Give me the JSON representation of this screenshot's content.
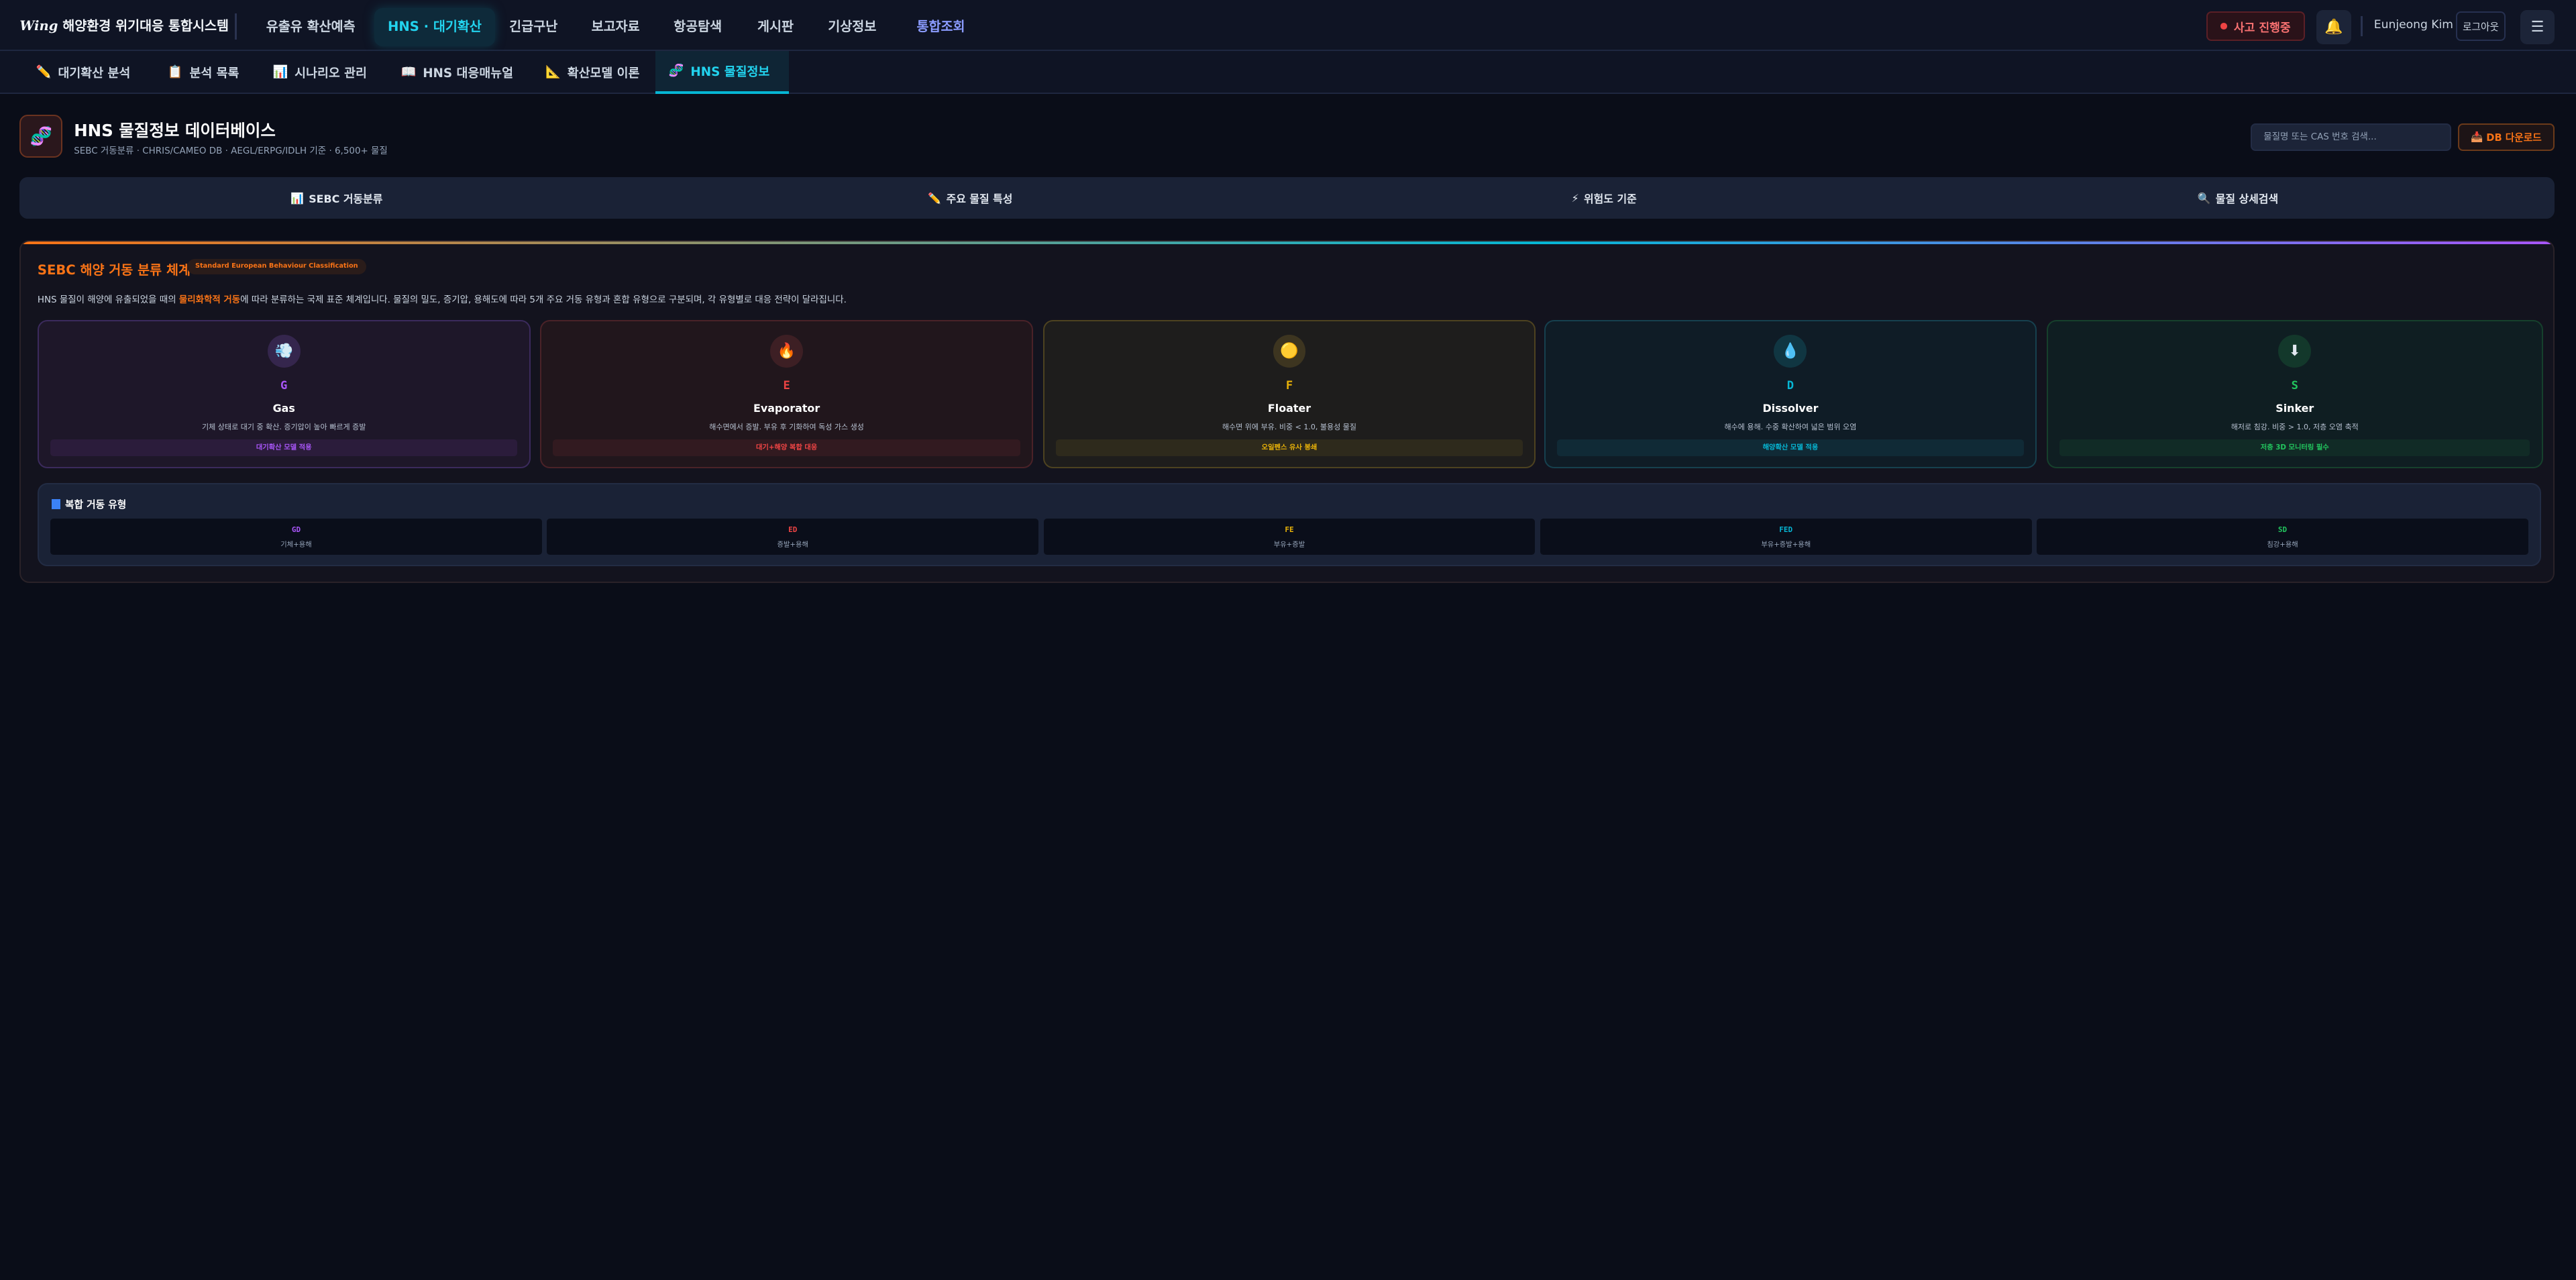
{
  "app": {
    "logo": "Wing",
    "title": "해양환경 위기대응 통합시스템"
  },
  "nav": [
    {
      "label": "유출유 확산예측",
      "active": false
    },
    {
      "label": "HNS · 대기확산",
      "active": true
    },
    {
      "label": "긴급구난",
      "active": false
    },
    {
      "label": "보고자료",
      "active": false
    },
    {
      "label": "항공탐색",
      "active": false
    },
    {
      "label": "게시판",
      "active": false
    },
    {
      "label": "기상정보",
      "active": false
    },
    {
      "label": "통합조회",
      "active": false
    }
  ],
  "topright": {
    "incident": "사고 진행중",
    "user": "Eunjeong Kim",
    "logout": "로그아웃",
    "bell_icon": "bell-icon",
    "menu_icon": "hamburger-icon"
  },
  "subnav": [
    {
      "icon": "✏️",
      "label": "대기확산 분석"
    },
    {
      "icon": "📋",
      "label": "분석 목록"
    },
    {
      "icon": "📊",
      "label": "시나리오 관리"
    },
    {
      "icon": "📖",
      "label": "HNS 대응매뉴얼"
    },
    {
      "icon": "📐",
      "label": "확산모델 이론"
    },
    {
      "icon": "🧬",
      "label": "HNS 물질정보",
      "active": true
    }
  ],
  "header": {
    "title": "HNS 물질정보 데이터베이스",
    "subtitle": "SEBC 거동분류 · CHRIS/CAMEO DB · AEGL/ERPG/IDLH 기준 · 6,500+ 물질",
    "search_placeholder": "물질명 또는 CAS 번호 검색...",
    "download": "DB 다운로드"
  },
  "tabs": [
    {
      "icon": "📊",
      "label": "SEBC 거동분류"
    },
    {
      "icon": "✏️",
      "label": "주요 물질 특성"
    },
    {
      "icon": "⚡",
      "label": "위험도 기준"
    },
    {
      "icon": "🔍",
      "label": "물질 상세검색"
    }
  ],
  "sebc": {
    "title": "SEBC 해양 거동 분류 체계",
    "badge": "Standard European Behaviour Classification",
    "desc_pre": "HNS 물질이 해양에 유출되었을 때의 ",
    "desc_hl": "물리화학적 거동",
    "desc_post": "에 따라 분류하는 국제 표준 체계입니다. 물질의 밀도, 증기압, 용해도에 따라 5개 주요 거동 유형과 혼합 유형으로 구분되며, 각 유형별로 대응 전략이 달라집니다.",
    "types": [
      {
        "code": "G",
        "name": "Gas",
        "icon": "💨",
        "desc": "기체 상태로 대기 중 확산. 증기압이 높아 빠르게 증발",
        "tag": "대기확산 모델 적용",
        "color": "#a855f7",
        "bg": "#1e1729",
        "border": "#3b2a5c",
        "tagbg": "#2b1c3b",
        "circ": "#35264d"
      },
      {
        "code": "E",
        "name": "Evaporator",
        "icon": "🔥",
        "desc": "해수면에서 증발. 부유 후 기화하여 독성 가스 생성",
        "tag": "대기+해양 복합 대응",
        "color": "#ef4444",
        "bg": "#21161c",
        "border": "#4a2228",
        "tagbg": "#321a20",
        "circ": "#3d1f24"
      },
      {
        "code": "F",
        "name": "Floater",
        "icon": "🟡",
        "desc": "해수면 위에 부유. 비중 < 1.0, 불용성 물질",
        "tag": "오일펜스 유사 봉쇄",
        "color": "#eab308",
        "bg": "#1e1d1c",
        "border": "#4d4220",
        "tagbg": "#2e2a1c",
        "circ": "#3d3520"
      },
      {
        "code": "D",
        "name": "Dissolver",
        "icon": "💧",
        "desc": "해수에 용해. 수중 확산하여 넓은 범위 오염",
        "tag": "해양확산 모델 적용",
        "color": "#06b6d4",
        "bg": "#0f1c26",
        "border": "#16404e",
        "tagbg": "#102a36",
        "circ": "#103642"
      },
      {
        "code": "S",
        "name": "Sinker",
        "icon": "⬇",
        "desc": "해저로 침강. 비중 > 1.0, 저층 오염 축적",
        "tag": "저층 3D 모니터링 필수",
        "color": "#22c55e",
        "bg": "#0f1e22",
        "border": "#16402c",
        "tagbg": "#112b26",
        "circ": "#13382b"
      }
    ]
  },
  "compound": {
    "title": "복합 거동 유형",
    "items": [
      {
        "code": "GD",
        "desc": "기체+용해",
        "color": "#a855f7"
      },
      {
        "code": "ED",
        "desc": "증발+용해",
        "color": "#ef4444"
      },
      {
        "code": "FE",
        "desc": "부유+증발",
        "color": "#eab308"
      },
      {
        "code": "FED",
        "desc": "부유+증발+용해",
        "color": "#06b6d4"
      },
      {
        "code": "SD",
        "desc": "침강+용해",
        "color": "#22c55e"
      }
    ]
  }
}
